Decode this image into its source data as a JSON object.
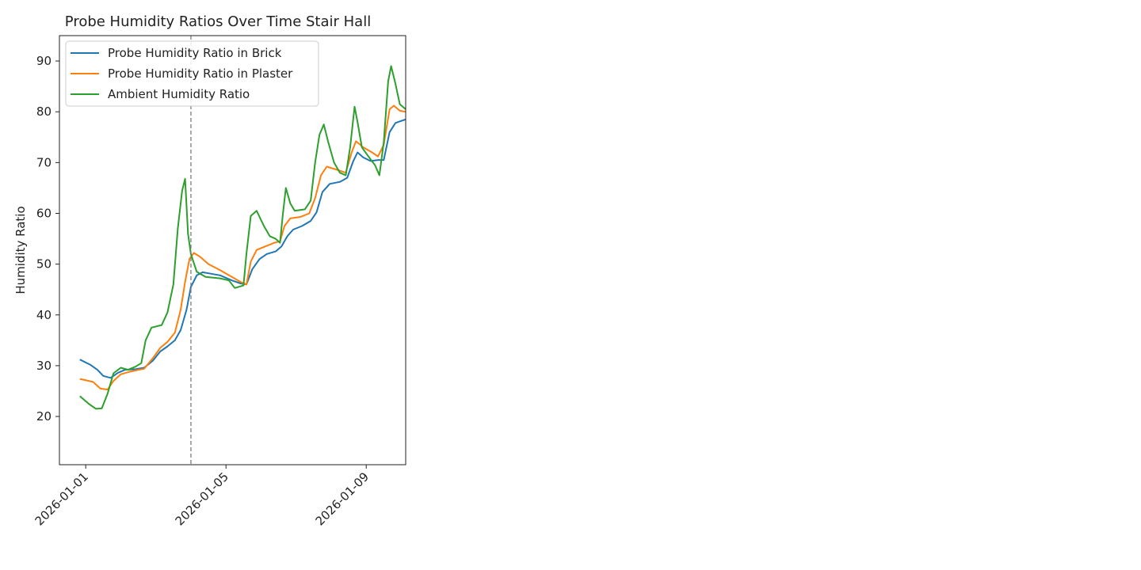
{
  "chart_data": {
    "type": "line",
    "title": "Probe Humidity Ratios Over Time Stair Hall",
    "xlabel": "",
    "ylabel": "Humidity Ratio",
    "x_type": "date",
    "xlim": [
      "2025-12-31T06:00",
      "2026-01-10T03:00"
    ],
    "ylim": [
      10.5,
      95
    ],
    "xticks": [
      "2026-01-01",
      "2026-01-05",
      "2026-01-09"
    ],
    "yticks": [
      20,
      30,
      40,
      50,
      60,
      70,
      80,
      90
    ],
    "grid": false,
    "legend": "top-left",
    "vline": {
      "x": "2026-01-04T00:00",
      "color": "#7f7f7f",
      "style": "dashed"
    },
    "series": [
      {
        "name": "Probe Humidity Ratio in Brick",
        "color": "#1f77b4",
        "points": [
          [
            "2025-12-31T20:00",
            31.2
          ],
          [
            "2026-01-01T03:00",
            30.2
          ],
          [
            "2026-01-01T08:00",
            29.2
          ],
          [
            "2026-01-01T12:00",
            28.0
          ],
          [
            "2026-01-01T17:00",
            27.6
          ],
          [
            "2026-01-01T22:00",
            28.6
          ],
          [
            "2026-01-02T03:00",
            29.2
          ],
          [
            "2026-01-02T10:00",
            29.3
          ],
          [
            "2026-01-02T16:00",
            29.6
          ],
          [
            "2026-01-02T22:00",
            31.0
          ],
          [
            "2026-01-03T03:00",
            32.8
          ],
          [
            "2026-01-03T08:00",
            33.8
          ],
          [
            "2026-01-03T13:00",
            35.0
          ],
          [
            "2026-01-03T17:00",
            37.0
          ],
          [
            "2026-01-03T21:00",
            41.0
          ],
          [
            "2026-01-04T00:00",
            45.5
          ],
          [
            "2026-01-04T04:00",
            47.8
          ],
          [
            "2026-01-04T08:00",
            48.4
          ],
          [
            "2026-01-04T12:00",
            48.2
          ],
          [
            "2026-01-04T20:00",
            47.8
          ],
          [
            "2026-01-05T04:00",
            46.8
          ],
          [
            "2026-01-05T10:00",
            46.2
          ],
          [
            "2026-01-05T14:00",
            46.0
          ],
          [
            "2026-01-05T18:00",
            49.0
          ],
          [
            "2026-01-05T23:00",
            51.0
          ],
          [
            "2026-01-06T04:00",
            52.0
          ],
          [
            "2026-01-06T10:00",
            52.5
          ],
          [
            "2026-01-06T14:00",
            53.5
          ],
          [
            "2026-01-06T18:00",
            55.5
          ],
          [
            "2026-01-06T22:00",
            56.8
          ],
          [
            "2026-01-07T04:00",
            57.5
          ],
          [
            "2026-01-07T10:00",
            58.5
          ],
          [
            "2026-01-07T14:00",
            60.2
          ],
          [
            "2026-01-07T18:00",
            64.2
          ],
          [
            "2026-01-07T23:00",
            65.8
          ],
          [
            "2026-01-08T06:00",
            66.2
          ],
          [
            "2026-01-08T11:00",
            67.0
          ],
          [
            "2026-01-08T15:00",
            70.2
          ],
          [
            "2026-01-08T18:00",
            72.0
          ],
          [
            "2026-01-08T22:00",
            71.0
          ],
          [
            "2026-01-09T03:00",
            70.3
          ],
          [
            "2026-01-09T08:00",
            70.5
          ],
          [
            "2026-01-09T12:00",
            70.5
          ],
          [
            "2026-01-09T16:00",
            76.0
          ],
          [
            "2026-01-09T20:00",
            77.8
          ],
          [
            "2026-01-10T03:00",
            78.5
          ]
        ]
      },
      {
        "name": "Probe Humidity Ratio in Plaster",
        "color": "#ff7f0e",
        "points": [
          [
            "2025-12-31T20:00",
            27.4
          ],
          [
            "2026-01-01T05:00",
            26.8
          ],
          [
            "2026-01-01T10:00",
            25.5
          ],
          [
            "2026-01-01T15:00",
            25.3
          ],
          [
            "2026-01-01T19:00",
            27.0
          ],
          [
            "2026-01-02T00:00",
            28.3
          ],
          [
            "2026-01-02T06:00",
            28.8
          ],
          [
            "2026-01-02T12:00",
            29.2
          ],
          [
            "2026-01-02T16:00",
            29.4
          ],
          [
            "2026-01-02T22:00",
            31.5
          ],
          [
            "2026-01-03T03:00",
            33.5
          ],
          [
            "2026-01-03T08:00",
            34.7
          ],
          [
            "2026-01-03T13:00",
            36.5
          ],
          [
            "2026-01-03T17:00",
            41.0
          ],
          [
            "2026-01-03T20:00",
            46.5
          ],
          [
            "2026-01-03T23:00",
            51.0
          ],
          [
            "2026-01-04T02:00",
            52.2
          ],
          [
            "2026-01-04T06:00",
            51.5
          ],
          [
            "2026-01-04T12:00",
            50.0
          ],
          [
            "2026-01-04T20:00",
            48.8
          ],
          [
            "2026-01-05T04:00",
            47.5
          ],
          [
            "2026-01-05T10:00",
            46.5
          ],
          [
            "2026-01-05T14:00",
            46.0
          ],
          [
            "2026-01-05T17:00",
            50.5
          ],
          [
            "2026-01-05T21:00",
            52.8
          ],
          [
            "2026-01-06T03:00",
            53.5
          ],
          [
            "2026-01-06T09:00",
            54.2
          ],
          [
            "2026-01-06T13:00",
            54.5
          ],
          [
            "2026-01-06T16:00",
            57.5
          ],
          [
            "2026-01-06T20:00",
            59.0
          ],
          [
            "2026-01-07T03:00",
            59.3
          ],
          [
            "2026-01-07T09:00",
            60.0
          ],
          [
            "2026-01-07T13:00",
            63.0
          ],
          [
            "2026-01-07T17:00",
            67.5
          ],
          [
            "2026-01-07T21:00",
            69.2
          ],
          [
            "2026-01-08T05:00",
            68.5
          ],
          [
            "2026-01-08T10:00",
            68.0
          ],
          [
            "2026-01-08T14:00",
            72.0
          ],
          [
            "2026-01-08T17:00",
            74.2
          ],
          [
            "2026-01-08T22:00",
            73.0
          ],
          [
            "2026-01-09T04:00",
            72.0
          ],
          [
            "2026-01-09T08:00",
            71.2
          ],
          [
            "2026-01-09T12:00",
            73.5
          ],
          [
            "2026-01-09T16:00",
            80.5
          ],
          [
            "2026-01-09T19:00",
            81.2
          ],
          [
            "2026-01-09T23:00",
            80.2
          ],
          [
            "2026-01-10T03:00",
            80.0
          ]
        ]
      },
      {
        "name": "Ambient Humidity Ratio",
        "color": "#2ca02c",
        "points": [
          [
            "2025-12-31T20:00",
            24.0
          ],
          [
            "2026-01-01T02:00",
            22.5
          ],
          [
            "2026-01-01T07:00",
            21.5
          ],
          [
            "2026-01-01T11:00",
            21.6
          ],
          [
            "2026-01-01T15:00",
            24.5
          ],
          [
            "2026-01-01T19:00",
            28.5
          ],
          [
            "2026-01-02T00:00",
            29.6
          ],
          [
            "2026-01-02T05:00",
            29.2
          ],
          [
            "2026-01-02T10:00",
            29.8
          ],
          [
            "2026-01-02T14:00",
            30.5
          ],
          [
            "2026-01-02T17:00",
            35.0
          ],
          [
            "2026-01-02T21:00",
            37.5
          ],
          [
            "2026-01-03T04:00",
            38.0
          ],
          [
            "2026-01-03T08:00",
            40.5
          ],
          [
            "2026-01-03T12:00",
            46.0
          ],
          [
            "2026-01-03T15:00",
            57.0
          ],
          [
            "2026-01-03T18:00",
            64.5
          ],
          [
            "2026-01-03T20:00",
            66.8
          ],
          [
            "2026-01-03T22:00",
            56.0
          ],
          [
            "2026-01-04T00:00",
            52.0
          ],
          [
            "2026-01-04T04:00",
            48.5
          ],
          [
            "2026-01-04T10:00",
            47.5
          ],
          [
            "2026-01-04T20:00",
            47.2
          ],
          [
            "2026-01-05T02:00",
            46.8
          ],
          [
            "2026-01-05T06:00",
            45.3
          ],
          [
            "2026-01-05T12:00",
            45.8
          ],
          [
            "2026-01-05T14:00",
            52.0
          ],
          [
            "2026-01-05T17:00",
            59.5
          ],
          [
            "2026-01-05T21:00",
            60.5
          ],
          [
            "2026-01-06T02:00",
            57.5
          ],
          [
            "2026-01-06T06:00",
            55.5
          ],
          [
            "2026-01-06T10:00",
            55.0
          ],
          [
            "2026-01-06T13:00",
            54.2
          ],
          [
            "2026-01-06T15:00",
            60.0
          ],
          [
            "2026-01-06T17:00",
            65.0
          ],
          [
            "2026-01-06T20:00",
            62.0
          ],
          [
            "2026-01-06T23:00",
            60.5
          ],
          [
            "2026-01-07T06:00",
            60.8
          ],
          [
            "2026-01-07T10:00",
            62.5
          ],
          [
            "2026-01-07T13:00",
            70.0
          ],
          [
            "2026-01-07T16:00",
            75.5
          ],
          [
            "2026-01-07T19:00",
            77.5
          ],
          [
            "2026-01-07T22:00",
            74.0
          ],
          [
            "2026-01-08T02:00",
            70.0
          ],
          [
            "2026-01-08T06:00",
            68.0
          ],
          [
            "2026-01-08T10:00",
            67.5
          ],
          [
            "2026-01-08T13:00",
            73.0
          ],
          [
            "2026-01-08T16:00",
            81.0
          ],
          [
            "2026-01-08T18:00",
            78.0
          ],
          [
            "2026-01-08T21:00",
            73.0
          ],
          [
            "2026-01-09T02:00",
            71.0
          ],
          [
            "2026-01-09T06:00",
            69.5
          ],
          [
            "2026-01-09T09:00",
            67.5
          ],
          [
            "2026-01-09T12:00",
            74.0
          ],
          [
            "2026-01-09T15:00",
            86.0
          ],
          [
            "2026-01-09T17:00",
            89.0
          ],
          [
            "2026-01-09T20:00",
            85.5
          ],
          [
            "2026-01-09T23:00",
            81.5
          ],
          [
            "2026-01-10T03:00",
            80.5
          ]
        ]
      }
    ]
  }
}
